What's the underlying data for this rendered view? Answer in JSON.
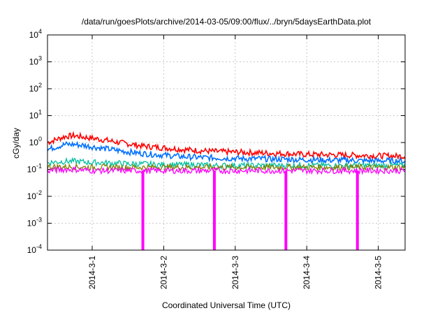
{
  "chart_data": {
    "type": "line",
    "title": "/data/run/goesPlots/archive/2014-03-05/09:00/flux/../bryn/5daysEarthData.plot",
    "xlabel": "Coordinated Universal Time (UTC)",
    "ylabel": "cGy/day",
    "yscale": "log",
    "ylim": [
      0.0001,
      10000
    ],
    "xlim": [
      "2014-02-28T09:00",
      "2014-03-05T09:00"
    ],
    "x_ticks": [
      "2014-3-1",
      "2014-3-2",
      "2014-3-3",
      "2014-3-4",
      "2014-3-5"
    ],
    "y_ticks": [
      {
        "base": "10",
        "exp": "-4"
      },
      {
        "base": "10",
        "exp": "-3"
      },
      {
        "base": "10",
        "exp": "-2"
      },
      {
        "base": "10",
        "exp": "-1"
      },
      {
        "base": "10",
        "exp": "0"
      },
      {
        "base": "10",
        "exp": "1"
      },
      {
        "base": "10",
        "exp": "2"
      },
      {
        "base": "10",
        "exp": "3"
      },
      {
        "base": "10",
        "exp": "4"
      }
    ],
    "grid": true,
    "x": [
      "2014-02-28T09:00",
      "2014-02-28T12:00",
      "2014-02-28T15:00",
      "2014-02-28T18:00",
      "2014-02-28T21:00",
      "2014-03-01T00:00",
      "2014-03-01T03:00",
      "2014-03-01T06:00",
      "2014-03-01T09:00",
      "2014-03-01T12:00",
      "2014-03-01T15:00",
      "2014-03-01T18:00",
      "2014-03-01T21:00",
      "2014-03-02T00:00",
      "2014-03-02T03:00",
      "2014-03-02T06:00",
      "2014-03-02T09:00",
      "2014-03-02T12:00",
      "2014-03-02T15:00",
      "2014-03-02T18:00",
      "2014-03-02T21:00",
      "2014-03-03T00:00",
      "2014-03-03T03:00",
      "2014-03-03T06:00",
      "2014-03-03T09:00",
      "2014-03-03T12:00",
      "2014-03-03T15:00",
      "2014-03-03T18:00",
      "2014-03-03T21:00",
      "2014-03-04T00:00",
      "2014-03-04T03:00",
      "2014-03-04T06:00",
      "2014-03-04T09:00",
      "2014-03-04T12:00",
      "2014-03-04T15:00",
      "2014-03-04T18:00",
      "2014-03-04T21:00",
      "2014-03-05T00:00",
      "2014-03-05T03:00",
      "2014-03-05T06:00",
      "2014-03-05T09:00"
    ],
    "series": [
      {
        "color": "#ff0000",
        "values": [
          1.0,
          1.3,
          1.7,
          1.8,
          1.6,
          1.45,
          1.3,
          1.15,
          1.0,
          0.9,
          0.8,
          0.72,
          0.68,
          0.64,
          0.6,
          0.56,
          0.53,
          0.5,
          0.48,
          0.46,
          0.45,
          0.44,
          0.43,
          0.42,
          0.41,
          0.4,
          0.39,
          0.38,
          0.37,
          0.36,
          0.36,
          0.35,
          0.35,
          0.34,
          0.34,
          0.33,
          0.33,
          0.32,
          0.32,
          0.31,
          0.31
        ]
      },
      {
        "color": "#0070ff",
        "values": [
          0.55,
          0.7,
          0.85,
          0.85,
          0.78,
          0.7,
          0.62,
          0.56,
          0.5,
          0.45,
          0.41,
          0.38,
          0.36,
          0.34,
          0.32,
          0.3,
          0.29,
          0.28,
          0.27,
          0.27,
          0.26,
          0.26,
          0.25,
          0.25,
          0.25,
          0.24,
          0.24,
          0.24,
          0.23,
          0.23,
          0.23,
          0.22,
          0.22,
          0.22,
          0.22,
          0.21,
          0.21,
          0.21,
          0.21,
          0.21,
          0.2
        ]
      },
      {
        "color": "#00c0a0",
        "values": [
          0.18,
          0.19,
          0.2,
          0.2,
          0.19,
          0.18,
          0.18,
          0.17,
          0.17,
          0.16,
          0.16,
          0.16,
          0.15,
          0.15,
          0.15,
          0.15,
          0.15,
          0.15,
          0.14,
          0.14,
          0.14,
          0.14,
          0.14,
          0.14,
          0.14,
          0.14,
          0.14,
          0.14,
          0.14,
          0.14,
          0.14,
          0.14,
          0.14,
          0.14,
          0.14,
          0.14,
          0.14,
          0.14,
          0.14,
          0.14,
          0.14
        ]
      },
      {
        "color": "#808000",
        "values": [
          0.125,
          0.125,
          0.125,
          0.125,
          0.12,
          0.12,
          0.12,
          0.12,
          0.12,
          0.12,
          0.12,
          0.12,
          0.12,
          0.12,
          0.12,
          0.12,
          0.12,
          0.12,
          0.12,
          0.12,
          0.12,
          0.12,
          0.12,
          0.12,
          0.12,
          0.12,
          0.12,
          0.12,
          0.12,
          0.12,
          0.12,
          0.12,
          0.12,
          0.12,
          0.12,
          0.12,
          0.12,
          0.12,
          0.12,
          0.12,
          0.12
        ]
      },
      {
        "color": "#ff00ff",
        "values": [
          0.09,
          0.095,
          0.1,
          0.1,
          0.095,
          0.09,
          0.09,
          0.09,
          0.09,
          0.09,
          0.09,
          0.09,
          0.09,
          0.09,
          0.09,
          0.09,
          0.09,
          0.09,
          0.09,
          0.09,
          0.09,
          0.09,
          0.09,
          0.09,
          0.09,
          0.09,
          0.09,
          0.09,
          0.09,
          0.09,
          0.09,
          0.09,
          0.09,
          0.09,
          0.09,
          0.09,
          0.09,
          0.09,
          0.09,
          0.09,
          0.09
        ]
      }
    ],
    "dropouts": [
      {
        "color": "#ff00ff",
        "x": "2014-03-01T17:00",
        "y": 0.0001
      },
      {
        "color": "#ff00ff",
        "x": "2014-03-02T17:00",
        "y": 0.0001
      },
      {
        "color": "#ff00ff",
        "x": "2014-03-03T17:00",
        "y": 0.0001
      },
      {
        "color": "#ff00ff",
        "x": "2014-03-04T17:00",
        "y": 0.0001
      }
    ]
  }
}
